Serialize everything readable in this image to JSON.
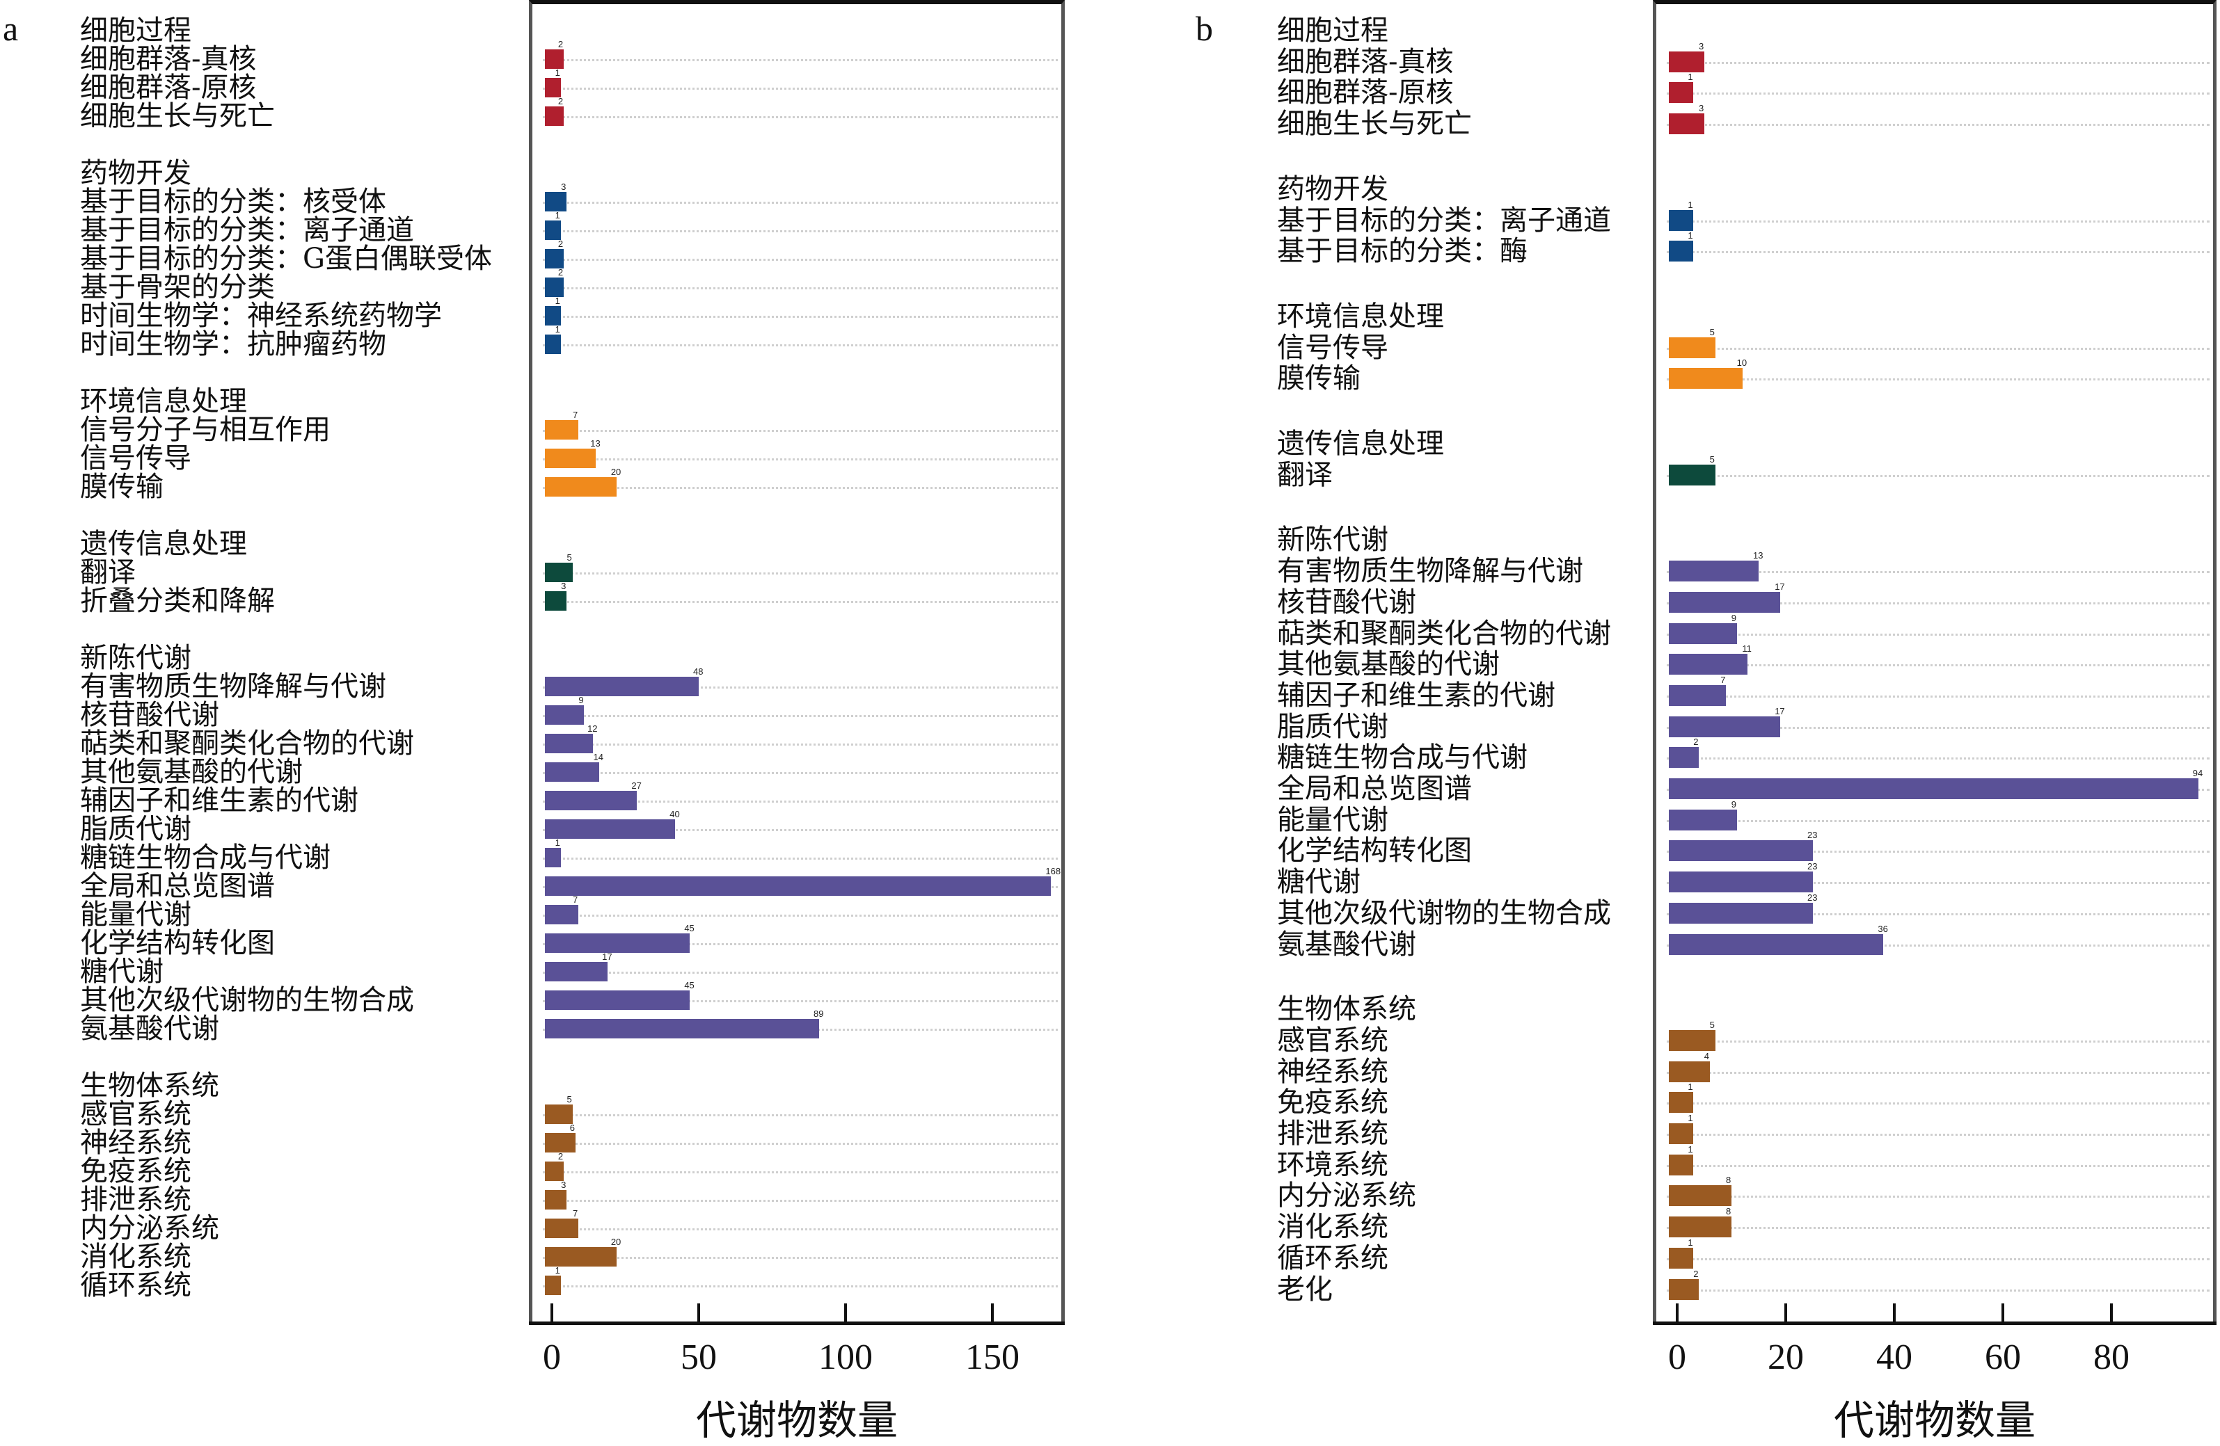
{
  "chart_data": [
    {
      "type": "bar",
      "orientation": "horizontal",
      "panel": "a",
      "xlabel": "代谢物数量",
      "xlim": [
        0,
        170
      ],
      "xticks": [
        0,
        50,
        100,
        150
      ],
      "grid": "dotted horizontal",
      "groups": [
        {
          "name": "细胞过程",
          "color": "#b01f2e",
          "categories": [
            "细胞群落-真核",
            "细胞群落-原核",
            "细胞生长与死亡"
          ],
          "values": [
            2,
            1,
            2
          ]
        },
        {
          "name": "药物开发",
          "color": "#114a85",
          "categories": [
            "基于目标的分类：核受体",
            "基于目标的分类：离子通道",
            "基于目标的分类：G蛋白偶联受体",
            "基于骨架的分类",
            "时间生物学：神经系统药物学",
            "时间生物学：抗肿瘤药物"
          ],
          "values": [
            3,
            1,
            2,
            2,
            1,
            1
          ]
        },
        {
          "name": "环境信息处理",
          "color": "#f08a1c",
          "categories": [
            "信号分子与相互作用",
            "信号传导",
            "膜传输"
          ],
          "values": [
            7,
            13,
            20
          ]
        },
        {
          "name": "遗传信息处理",
          "color": "#0d4a3c",
          "categories": [
            "翻译",
            "折叠分类和降解"
          ],
          "values": [
            5,
            3
          ]
        },
        {
          "name": "新陈代谢",
          "color": "#5a5197",
          "categories": [
            "有害物质生物降解与代谢",
            "核苷酸代谢",
            "萜类和聚酮类化合物的代谢",
            "其他氨基酸的代谢",
            "辅因子和维生素的代谢",
            "脂质代谢",
            "糖链生物合成与代谢",
            "全局和总览图谱",
            "能量代谢",
            "化学结构转化图",
            "糖代谢",
            "其他次级代谢物的生物合成",
            "氨基酸代谢"
          ],
          "values": [
            48,
            9,
            12,
            14,
            27,
            40,
            1,
            168,
            7,
            45,
            17,
            45,
            89
          ]
        },
        {
          "name": "生物体系统",
          "color": "#9a5a22",
          "categories": [
            "感官系统",
            "神经系统",
            "免疫系统",
            "排泄系统",
            "内分泌系统",
            "消化系统",
            "循环系统"
          ],
          "values": [
            5,
            6,
            2,
            3,
            7,
            20,
            1
          ]
        }
      ]
    },
    {
      "type": "bar",
      "orientation": "horizontal",
      "panel": "b",
      "xlabel": "代谢物数量",
      "xlim": [
        0,
        98
      ],
      "xticks": [
        0,
        20,
        40,
        60,
        80
      ],
      "grid": "dotted horizontal",
      "groups": [
        {
          "name": "细胞过程",
          "color": "#b01f2e",
          "categories": [
            "细胞群落-真核",
            "细胞群落-原核",
            "细胞生长与死亡"
          ],
          "values": [
            3,
            1,
            3
          ]
        },
        {
          "name": "药物开发",
          "color": "#114a85",
          "categories": [
            "基于目标的分类：离子通道",
            "基于目标的分类：酶"
          ],
          "values": [
            1,
            1
          ]
        },
        {
          "name": "环境信息处理",
          "color": "#f08a1c",
          "categories": [
            "信号传导",
            "膜传输"
          ],
          "values": [
            5,
            10
          ]
        },
        {
          "name": "遗传信息处理",
          "color": "#0d4a3c",
          "categories": [
            "翻译"
          ],
          "values": [
            5
          ]
        },
        {
          "name": "新陈代谢",
          "color": "#5a5197",
          "categories": [
            "有害物质生物降解与代谢",
            "核苷酸代谢",
            "萜类和聚酮类化合物的代谢",
            "其他氨基酸的代谢",
            "辅因子和维生素的代谢",
            "脂质代谢",
            "糖链生物合成与代谢",
            "全局和总览图谱",
            "能量代谢",
            "化学结构转化图",
            "糖代谢",
            "其他次级代谢物的生物合成",
            "氨基酸代谢"
          ],
          "values": [
            13,
            17,
            9,
            11,
            7,
            17,
            2,
            94,
            9,
            23,
            23,
            23,
            36
          ]
        },
        {
          "name": "生物体系统",
          "color": "#9a5a22",
          "categories": [
            "感官系统",
            "神经系统",
            "免疫系统",
            "排泄系统",
            "环境系统",
            "内分泌系统",
            "消化系统",
            "循环系统",
            "老化"
          ],
          "values": [
            5,
            4,
            1,
            1,
            1,
            8,
            8,
            1,
            2
          ]
        }
      ]
    }
  ],
  "panels": [
    {
      "letter": "a"
    },
    {
      "letter": "b"
    }
  ]
}
